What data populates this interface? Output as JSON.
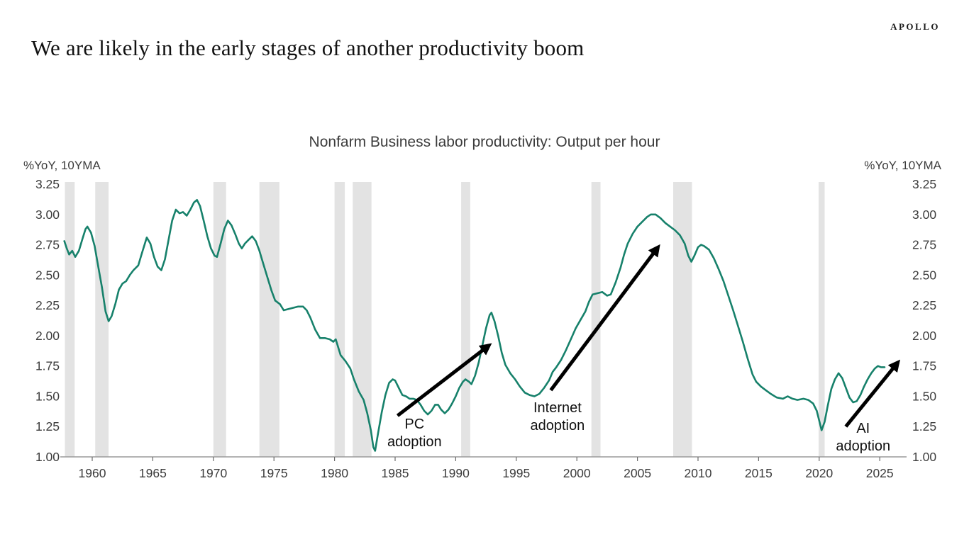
{
  "brand": {
    "logo_text": "APOLLO"
  },
  "header": {
    "title": "We are likely in the early stages of another productivity boom"
  },
  "chart_data": {
    "type": "line",
    "title": "Nonfarm Business labor productivity: Output per hour",
    "y_axis_label_left": "%YoY, 10YMA",
    "y_axis_label_right": "%YoY, 10YMA",
    "xlim": [
      1957.4,
      2027.2
    ],
    "ylim": [
      1.0,
      3.25
    ],
    "x_ticks": [
      1960,
      1965,
      1970,
      1975,
      1980,
      1985,
      1990,
      1995,
      2000,
      2005,
      2010,
      2015,
      2020,
      2025
    ],
    "y_ticks": [
      "1.00",
      "1.25",
      "1.50",
      "1.75",
      "2.00",
      "2.25",
      "2.50",
      "2.75",
      "3.00",
      "3.25"
    ],
    "grid": false,
    "legend": "none",
    "colors": {
      "line": "#17816b",
      "recession_band": "#e3e3e3",
      "axis": "#9a9a9a",
      "tick": "#6b6b6b",
      "text": "#3c3c3c",
      "annotation": "#111111",
      "arrow": "#000000"
    },
    "recessions": [
      [
        1957.75,
        1958.55
      ],
      [
        1960.25,
        1961.35
      ],
      [
        1970.0,
        1971.05
      ],
      [
        1973.8,
        1975.45
      ],
      [
        1980.0,
        1980.85
      ],
      [
        1981.5,
        1983.05
      ],
      [
        1990.45,
        1991.2
      ],
      [
        2001.2,
        2001.95
      ],
      [
        2007.95,
        2009.5
      ],
      [
        2019.95,
        2020.45
      ]
    ],
    "series": [
      {
        "name": "Nonfarm Business labor productivity, output per hour (%YoY, 10YMA)",
        "points": [
          [
            1957.7,
            2.78
          ],
          [
            1957.9,
            2.72
          ],
          [
            1958.1,
            2.67
          ],
          [
            1958.35,
            2.7
          ],
          [
            1958.6,
            2.65
          ],
          [
            1958.9,
            2.7
          ],
          [
            1959.2,
            2.8
          ],
          [
            1959.45,
            2.88
          ],
          [
            1959.6,
            2.9
          ],
          [
            1959.9,
            2.85
          ],
          [
            1960.2,
            2.74
          ],
          [
            1960.5,
            2.57
          ],
          [
            1960.8,
            2.4
          ],
          [
            1961.1,
            2.2
          ],
          [
            1961.35,
            2.12
          ],
          [
            1961.6,
            2.16
          ],
          [
            1961.9,
            2.26
          ],
          [
            1962.2,
            2.38
          ],
          [
            1962.5,
            2.43
          ],
          [
            1962.8,
            2.45
          ],
          [
            1963.1,
            2.5
          ],
          [
            1963.4,
            2.54
          ],
          [
            1963.8,
            2.58
          ],
          [
            1964.1,
            2.68
          ],
          [
            1964.5,
            2.81
          ],
          [
            1964.8,
            2.76
          ],
          [
            1965.1,
            2.65
          ],
          [
            1965.4,
            2.57
          ],
          [
            1965.7,
            2.54
          ],
          [
            1966.0,
            2.63
          ],
          [
            1966.3,
            2.79
          ],
          [
            1966.6,
            2.95
          ],
          [
            1966.9,
            3.04
          ],
          [
            1967.2,
            3.01
          ],
          [
            1967.5,
            3.02
          ],
          [
            1967.8,
            2.99
          ],
          [
            1968.1,
            3.04
          ],
          [
            1968.4,
            3.1
          ],
          [
            1968.65,
            3.12
          ],
          [
            1968.9,
            3.07
          ],
          [
            1969.2,
            2.95
          ],
          [
            1969.5,
            2.82
          ],
          [
            1969.8,
            2.72
          ],
          [
            1970.1,
            2.66
          ],
          [
            1970.3,
            2.65
          ],
          [
            1970.6,
            2.76
          ],
          [
            1970.9,
            2.88
          ],
          [
            1971.2,
            2.95
          ],
          [
            1971.5,
            2.91
          ],
          [
            1971.8,
            2.84
          ],
          [
            1972.1,
            2.76
          ],
          [
            1972.35,
            2.72
          ],
          [
            1972.6,
            2.76
          ],
          [
            1972.9,
            2.79
          ],
          [
            1973.2,
            2.82
          ],
          [
            1973.5,
            2.78
          ],
          [
            1973.8,
            2.7
          ],
          [
            1974.1,
            2.6
          ],
          [
            1974.4,
            2.5
          ],
          [
            1974.8,
            2.37
          ],
          [
            1975.1,
            2.29
          ],
          [
            1975.5,
            2.26
          ],
          [
            1975.8,
            2.21
          ],
          [
            1976.2,
            2.22
          ],
          [
            1976.6,
            2.23
          ],
          [
            1977.0,
            2.24
          ],
          [
            1977.4,
            2.24
          ],
          [
            1977.7,
            2.21
          ],
          [
            1978.0,
            2.15
          ],
          [
            1978.4,
            2.05
          ],
          [
            1978.8,
            1.98
          ],
          [
            1979.2,
            1.98
          ],
          [
            1979.6,
            1.97
          ],
          [
            1979.9,
            1.95
          ],
          [
            1980.1,
            1.97
          ],
          [
            1980.5,
            1.84
          ],
          [
            1980.9,
            1.79
          ],
          [
            1981.3,
            1.73
          ],
          [
            1981.6,
            1.64
          ],
          [
            1982.0,
            1.54
          ],
          [
            1982.4,
            1.47
          ],
          [
            1982.7,
            1.36
          ],
          [
            1983.0,
            1.22
          ],
          [
            1983.2,
            1.08
          ],
          [
            1983.35,
            1.05
          ],
          [
            1983.6,
            1.2
          ],
          [
            1983.9,
            1.37
          ],
          [
            1984.2,
            1.51
          ],
          [
            1984.5,
            1.61
          ],
          [
            1984.8,
            1.64
          ],
          [
            1985.0,
            1.63
          ],
          [
            1985.3,
            1.57
          ],
          [
            1985.6,
            1.51
          ],
          [
            1985.9,
            1.5
          ],
          [
            1986.2,
            1.48
          ],
          [
            1986.5,
            1.48
          ],
          [
            1986.8,
            1.47
          ],
          [
            1987.1,
            1.43
          ],
          [
            1987.4,
            1.38
          ],
          [
            1987.7,
            1.35
          ],
          [
            1988.0,
            1.38
          ],
          [
            1988.3,
            1.43
          ],
          [
            1988.55,
            1.43
          ],
          [
            1988.8,
            1.39
          ],
          [
            1989.1,
            1.36
          ],
          [
            1989.4,
            1.39
          ],
          [
            1989.7,
            1.44
          ],
          [
            1990.0,
            1.5
          ],
          [
            1990.3,
            1.57
          ],
          [
            1990.6,
            1.62
          ],
          [
            1990.8,
            1.64
          ],
          [
            1991.1,
            1.62
          ],
          [
            1991.3,
            1.6
          ],
          [
            1991.6,
            1.67
          ],
          [
            1991.9,
            1.78
          ],
          [
            1992.2,
            1.92
          ],
          [
            1992.5,
            2.06
          ],
          [
            1992.8,
            2.17
          ],
          [
            1992.95,
            2.19
          ],
          [
            1993.2,
            2.12
          ],
          [
            1993.5,
            2.0
          ],
          [
            1993.8,
            1.86
          ],
          [
            1994.1,
            1.76
          ],
          [
            1994.5,
            1.69
          ],
          [
            1994.9,
            1.64
          ],
          [
            1995.3,
            1.58
          ],
          [
            1995.7,
            1.53
          ],
          [
            1996.1,
            1.51
          ],
          [
            1996.5,
            1.5
          ],
          [
            1996.9,
            1.52
          ],
          [
            1997.3,
            1.57
          ],
          [
            1997.7,
            1.63
          ],
          [
            1998.0,
            1.7
          ],
          [
            1998.3,
            1.74
          ],
          [
            1998.7,
            1.8
          ],
          [
            1999.1,
            1.88
          ],
          [
            1999.5,
            1.97
          ],
          [
            1999.9,
            2.06
          ],
          [
            2000.3,
            2.13
          ],
          [
            2000.7,
            2.2
          ],
          [
            2001.0,
            2.28
          ],
          [
            2001.3,
            2.34
          ],
          [
            2001.7,
            2.35
          ],
          [
            2002.1,
            2.36
          ],
          [
            2002.5,
            2.33
          ],
          [
            2002.8,
            2.34
          ],
          [
            2003.2,
            2.44
          ],
          [
            2003.6,
            2.56
          ],
          [
            2003.9,
            2.67
          ],
          [
            2004.2,
            2.76
          ],
          [
            2004.6,
            2.84
          ],
          [
            2005.0,
            2.9
          ],
          [
            2005.4,
            2.94
          ],
          [
            2005.8,
            2.98
          ],
          [
            2006.1,
            3.0
          ],
          [
            2006.5,
            3.0
          ],
          [
            2006.9,
            2.97
          ],
          [
            2007.3,
            2.93
          ],
          [
            2007.7,
            2.9
          ],
          [
            2008.1,
            2.87
          ],
          [
            2008.5,
            2.83
          ],
          [
            2008.9,
            2.76
          ],
          [
            2009.2,
            2.66
          ],
          [
            2009.45,
            2.61
          ],
          [
            2009.7,
            2.66
          ],
          [
            2010.0,
            2.73
          ],
          [
            2010.25,
            2.75
          ],
          [
            2010.5,
            2.74
          ],
          [
            2010.9,
            2.71
          ],
          [
            2011.3,
            2.64
          ],
          [
            2011.7,
            2.55
          ],
          [
            2012.1,
            2.45
          ],
          [
            2012.5,
            2.33
          ],
          [
            2012.9,
            2.21
          ],
          [
            2013.3,
            2.08
          ],
          [
            2013.7,
            1.95
          ],
          [
            2014.1,
            1.81
          ],
          [
            2014.5,
            1.68
          ],
          [
            2014.8,
            1.62
          ],
          [
            2015.2,
            1.58
          ],
          [
            2015.6,
            1.55
          ],
          [
            2016.0,
            1.52
          ],
          [
            2016.5,
            1.49
          ],
          [
            2017.0,
            1.48
          ],
          [
            2017.4,
            1.5
          ],
          [
            2017.8,
            1.48
          ],
          [
            2018.2,
            1.47
          ],
          [
            2018.7,
            1.48
          ],
          [
            2019.1,
            1.47
          ],
          [
            2019.5,
            1.44
          ],
          [
            2019.8,
            1.38
          ],
          [
            2020.0,
            1.3
          ],
          [
            2020.2,
            1.22
          ],
          [
            2020.45,
            1.29
          ],
          [
            2020.7,
            1.42
          ],
          [
            2021.0,
            1.56
          ],
          [
            2021.3,
            1.64
          ],
          [
            2021.6,
            1.69
          ],
          [
            2021.9,
            1.65
          ],
          [
            2022.2,
            1.57
          ],
          [
            2022.5,
            1.49
          ],
          [
            2022.8,
            1.45
          ],
          [
            2023.1,
            1.46
          ],
          [
            2023.4,
            1.51
          ],
          [
            2023.7,
            1.58
          ],
          [
            2024.0,
            1.64
          ],
          [
            2024.3,
            1.69
          ],
          [
            2024.6,
            1.73
          ],
          [
            2024.85,
            1.75
          ],
          [
            2025.1,
            1.74
          ],
          [
            2025.4,
            1.74
          ]
        ]
      }
    ],
    "annotations": [
      {
        "id": "pc-adoption",
        "label_lines": [
          "PC",
          "adoption"
        ],
        "text_anchor": {
          "year": 1986.6,
          "value": 1.333
        },
        "arrow": {
          "from": [
            1985.2,
            1.34
          ],
          "to": [
            1992.75,
            1.92
          ]
        }
      },
      {
        "id": "internet-adoption",
        "label_lines": [
          "Internet",
          "adoption"
        ],
        "text_anchor": {
          "year": 1998.4,
          "value": 1.467
        },
        "arrow": {
          "from": [
            1997.85,
            1.55
          ],
          "to": [
            2006.7,
            2.73
          ]
        }
      },
      {
        "id": "ai-adoption",
        "label_lines": [
          "AI",
          "adoption"
        ],
        "text_anchor": {
          "year": 2023.63,
          "value": 1.298
        },
        "arrow": {
          "from": [
            2022.2,
            1.25
          ],
          "to": [
            2026.5,
            1.78
          ]
        }
      }
    ]
  }
}
